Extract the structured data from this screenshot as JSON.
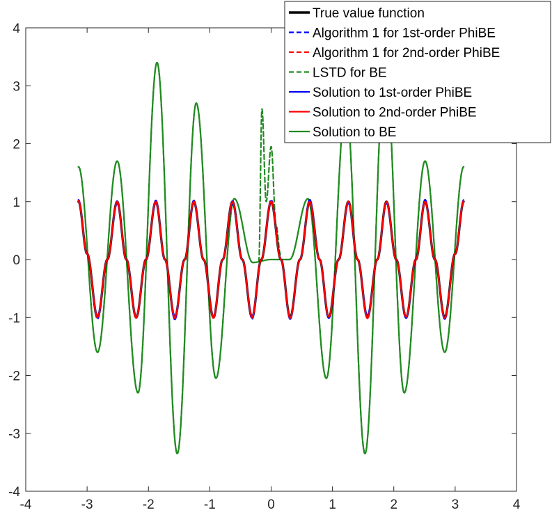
{
  "chart_data": {
    "type": "line",
    "xlim": [
      -4,
      4
    ],
    "ylim": [
      -4,
      4
    ],
    "xticks": [
      "-4",
      "-3",
      "-2",
      "-1",
      "0",
      "1",
      "2",
      "3",
      "4"
    ],
    "yticks": [
      "-4",
      "-3",
      "-2",
      "-1",
      "0",
      "1",
      "2",
      "3",
      "4"
    ],
    "grid": false,
    "legend_position": "top-right",
    "x_domain": [
      -3.1416,
      3.1416
    ],
    "series": [
      {
        "key": "sol_be",
        "name": "Solution to BE",
        "color": "#228B22",
        "dash": false,
        "width": 2.2,
        "draw_order": 1
      },
      {
        "key": "lstd_be",
        "name": "LSTD for BE",
        "color": "#228B22",
        "dash": true,
        "width": 2.2,
        "draw_order": 2
      },
      {
        "key": "true_value",
        "name": "True value function",
        "color": "#000000",
        "dash": false,
        "width": 3.2,
        "draw_order": 3
      },
      {
        "key": "sol_phibe1",
        "name": "Solution to 1st-order PhiBE",
        "color": "#0000FF",
        "dash": false,
        "width": 2.2,
        "draw_order": 4
      },
      {
        "key": "alg1_phibe1",
        "name": "Algorithm 1 for 1st-order PhiBE",
        "color": "#0000FF",
        "dash": true,
        "width": 2.2,
        "draw_order": 5
      },
      {
        "key": "sol_phibe2",
        "name": "Solution to 2nd-order PhiBE",
        "color": "#FF0000",
        "dash": false,
        "width": 2.2,
        "draw_order": 6
      },
      {
        "key": "alg1_phibe2",
        "name": "Algorithm 1 for 2nd-order PhiBE",
        "color": "#FF0000",
        "dash": true,
        "width": 2.2,
        "draw_order": 7
      }
    ],
    "legend_order": [
      "true_value",
      "alg1_phibe1",
      "alg1_phibe2",
      "lstd_be",
      "sol_phibe1",
      "sol_phibe2",
      "sol_be"
    ],
    "true_value_points": [
      [
        -3.14,
        1.0
      ],
      [
        -3.0,
        0.1
      ],
      [
        -2.83,
        -1.0
      ],
      [
        -2.67,
        0.0
      ],
      [
        -2.51,
        1.0
      ],
      [
        -2.36,
        0.0
      ],
      [
        -2.2,
        -1.0
      ],
      [
        -2.04,
        0.0
      ],
      [
        -1.88,
        1.0
      ],
      [
        -1.73,
        0.0
      ],
      [
        -1.57,
        -1.0
      ],
      [
        -1.41,
        0.0
      ],
      [
        -1.26,
        1.0
      ],
      [
        -1.1,
        0.0
      ],
      [
        -0.94,
        -1.0
      ],
      [
        -0.79,
        0.0
      ],
      [
        -0.63,
        1.0
      ],
      [
        -0.47,
        0.0
      ],
      [
        -0.31,
        -1.0
      ],
      [
        -0.16,
        0.0
      ],
      [
        0.0,
        1.0
      ],
      [
        0.16,
        0.0
      ],
      [
        0.31,
        -1.0
      ],
      [
        0.47,
        0.0
      ],
      [
        0.63,
        1.0
      ],
      [
        0.79,
        0.0
      ],
      [
        0.94,
        -1.0
      ],
      [
        1.1,
        0.0
      ],
      [
        1.26,
        1.0
      ],
      [
        1.41,
        0.0
      ],
      [
        1.57,
        -1.0
      ],
      [
        1.73,
        0.0
      ],
      [
        1.88,
        1.0
      ],
      [
        2.04,
        0.0
      ],
      [
        2.2,
        -1.0
      ],
      [
        2.36,
        0.0
      ],
      [
        2.51,
        1.0
      ],
      [
        2.67,
        0.0
      ],
      [
        2.83,
        -1.0
      ],
      [
        3.0,
        0.1
      ],
      [
        3.14,
        1.0
      ]
    ],
    "be_extrema": [
      [
        -3.14,
        1.6
      ],
      [
        -2.83,
        -1.6
      ],
      [
        -2.51,
        1.7
      ],
      [
        -2.17,
        -2.3
      ],
      [
        -1.86,
        3.4
      ],
      [
        -1.53,
        -3.35
      ],
      [
        -1.22,
        2.7
      ],
      [
        -0.9,
        -2.05
      ],
      [
        -0.6,
        1.05
      ],
      [
        -0.3,
        -0.05
      ],
      [
        0.0,
        0.0
      ],
      [
        0.3,
        0.0
      ],
      [
        0.6,
        1.05
      ],
      [
        0.9,
        -2.05
      ],
      [
        1.22,
        2.7
      ],
      [
        1.53,
        -3.35
      ],
      [
        1.86,
        3.4
      ],
      [
        2.17,
        -2.3
      ],
      [
        2.51,
        1.7
      ],
      [
        2.83,
        -1.6
      ],
      [
        3.14,
        1.6
      ]
    ],
    "lstd_bump": [
      [
        -0.2,
        0.0
      ],
      [
        -0.15,
        2.6
      ],
      [
        -0.08,
        1.0
      ],
      [
        0.0,
        1.95
      ],
      [
        0.08,
        0.6
      ],
      [
        0.15,
        0.1
      ]
    ]
  }
}
